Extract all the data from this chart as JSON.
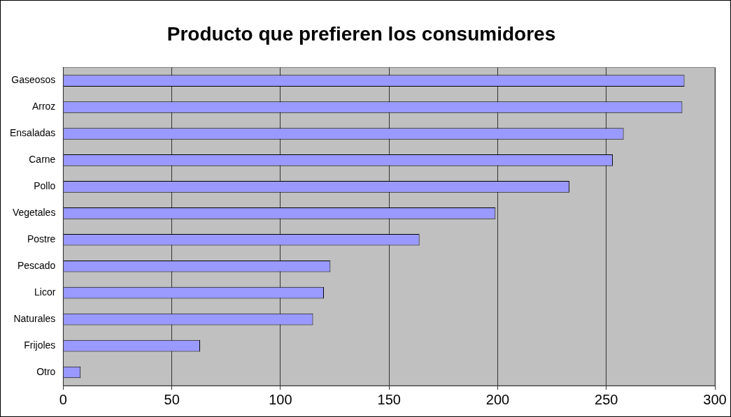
{
  "chart_data": {
    "type": "bar",
    "orientation": "horizontal",
    "title": "Producto que prefieren los consumidores",
    "categories": [
      "Gaseosos",
      "Arroz",
      "Ensaladas",
      "Carne",
      "Pollo",
      "Vegetales",
      "Postre",
      "Pescado",
      "Licor",
      "Naturales",
      "Frijoles",
      "Otro"
    ],
    "values": [
      286,
      285,
      258,
      253,
      233,
      199,
      164,
      123,
      120,
      115,
      63,
      8
    ],
    "color": "#9999ff",
    "xlim": [
      0,
      300
    ],
    "xticks": [
      0,
      50,
      100,
      150,
      200,
      250,
      300
    ],
    "grid": "x",
    "legend": false
  }
}
